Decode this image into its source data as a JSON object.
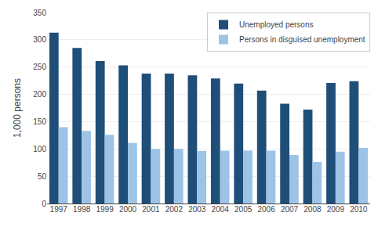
{
  "chart_data": {
    "type": "bar",
    "categories": [
      "1997",
      "1998",
      "1999",
      "2000",
      "2001",
      "2002",
      "2003",
      "2004",
      "2005",
      "2006",
      "2007",
      "2008",
      "2009",
      "2010"
    ],
    "series": [
      {
        "name": "Unemployed persons",
        "color": "#1F4E79",
        "values": [
          313,
          285,
          261,
          253,
          238,
          238,
          235,
          229,
          220,
          207,
          183,
          172,
          221,
          224
        ]
      },
      {
        "name": "Persons in disguised unemployment",
        "color": "#9DC3E6",
        "values": [
          140,
          133,
          126,
          111,
          100,
          100,
          96,
          97,
          97,
          97,
          89,
          76,
          95,
          102
        ]
      }
    ],
    "ylabel": "1,000 persons",
    "ylim": [
      0,
      350
    ],
    "yticks": [
      0,
      50,
      100,
      150,
      200,
      250,
      300,
      350
    ],
    "grid": true,
    "legend": "upper right"
  }
}
